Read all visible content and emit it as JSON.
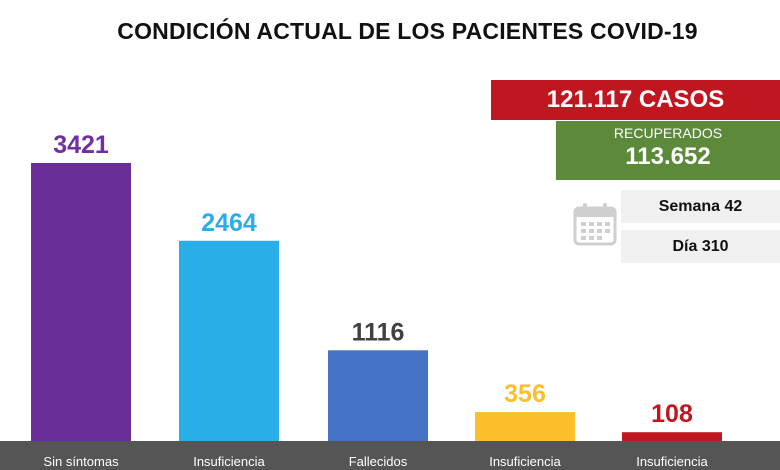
{
  "header": {
    "title": "CONDICIÓN ACTUAL DE LOS PACIENTES COVID-19"
  },
  "summary": {
    "casos": "121.117 CASOS",
    "recuperados_label": "RECUPERADOS",
    "recuperados_value": "113.652",
    "semana": "Semana 42",
    "dia": "Día 310"
  },
  "icons": {
    "calendar": "calendar-icon"
  },
  "chart_data": {
    "type": "bar",
    "title": "CONDICIÓN ACTUAL DE LOS PACIENTES COVID-19",
    "categories": [
      "Sin síntomas",
      "Insuficiencia",
      "Fallecidos",
      "Insuficiencia",
      "Insuficiencia"
    ],
    "values": [
      3421,
      2464,
      1116,
      356,
      108
    ],
    "colors": [
      "#6a2f96",
      "#2aaee8",
      "#4472c4",
      "#fbbf2c",
      "#c0161f"
    ],
    "label_colors": [
      "#7030a0",
      "#2aaee8",
      "#404040",
      "#fbbf2c",
      "#c0161f"
    ],
    "ylim": [
      0,
      3421
    ],
    "grid": false,
    "legend": "none"
  }
}
